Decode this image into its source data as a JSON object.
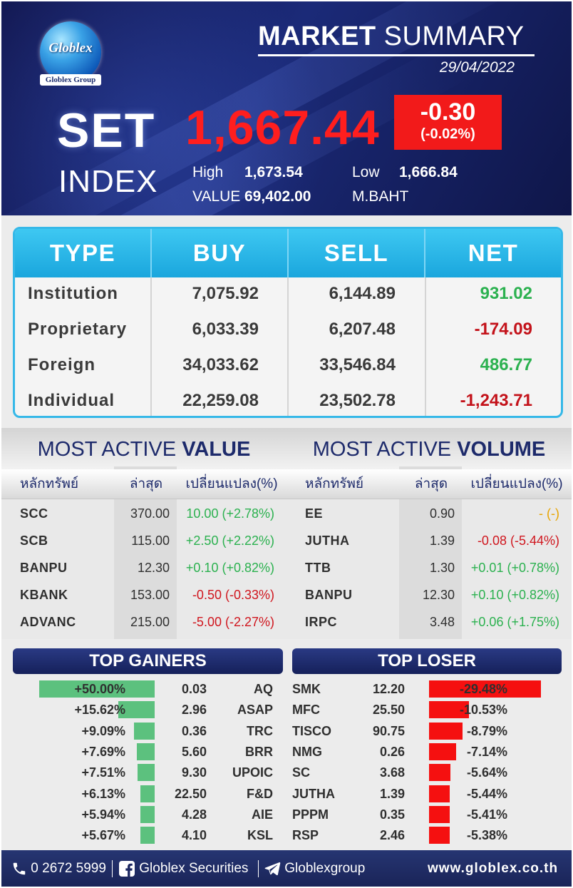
{
  "header": {
    "logo_text": "Globlex",
    "logo_group": "Globlex Group",
    "title_bold": "MARKET",
    "title_rest": "SUMMARY",
    "date": "29/04/2022",
    "index_name_1": "SET",
    "index_name_2": "INDEX",
    "index_value": "1,667.44",
    "change": "-0.30",
    "change_pct": "(-0.02%)",
    "high_label": "High",
    "high_value": "1,673.54",
    "low_label": "Low",
    "low_value": "1,666.84",
    "value_label": "VALUE",
    "value_value": "69,402.00",
    "value_unit": "M.BAHT",
    "colors": {
      "index_value": "#ff1e1e",
      "change_box": "#f21a1a"
    }
  },
  "investor_types": {
    "headers": [
      "TYPE",
      "BUY",
      "SELL",
      "NET"
    ],
    "rows": [
      {
        "type": "Institution",
        "buy": "7,075.92",
        "sell": "6,144.89",
        "net": "931.02",
        "net_sign": "pos"
      },
      {
        "type": "Proprietary",
        "buy": "6,033.39",
        "sell": "6,207.48",
        "net": "-174.09",
        "net_sign": "neg"
      },
      {
        "type": "Foreign",
        "buy": "34,033.62",
        "sell": "33,546.84",
        "net": "486.77",
        "net_sign": "pos"
      },
      {
        "type": "Individual",
        "buy": "22,259.08",
        "sell": "23,502.78",
        "net": "-1,243.71",
        "net_sign": "neg"
      }
    ]
  },
  "most_active_value": {
    "title_light": "MOST ACTIVE",
    "title_bold": "VALUE",
    "columns": [
      "หลักทรัพย์",
      "ล่าสุด",
      "เปลี่ยนแปลง(%)"
    ],
    "rows": [
      {
        "symbol": "SCC",
        "last": "370.00",
        "change": "10.00 (+2.78%)",
        "sign": "pos"
      },
      {
        "symbol": "SCB",
        "last": "115.00",
        "change": "+2.50 (+2.22%)",
        "sign": "pos"
      },
      {
        "symbol": "BANPU",
        "last": "12.30",
        "change": "+0.10 (+0.82%)",
        "sign": "pos"
      },
      {
        "symbol": "KBANK",
        "last": "153.00",
        "change": "-0.50 (-0.33%)",
        "sign": "neg"
      },
      {
        "symbol": "ADVANC",
        "last": "215.00",
        "change": "-5.00 (-2.27%)",
        "sign": "neg"
      }
    ]
  },
  "most_active_volume": {
    "title_light": "MOST ACTIVE",
    "title_bold": "VOLUME",
    "columns": [
      "หลักทรัพย์",
      "ล่าสุด",
      "เปลี่ยนแปลง(%)"
    ],
    "rows": [
      {
        "symbol": "EE",
        "last": "0.90",
        "change": "- (-)",
        "sign": "flat"
      },
      {
        "symbol": "JUTHA",
        "last": "1.39",
        "change": "-0.08 (-5.44%)",
        "sign": "neg"
      },
      {
        "symbol": "TTB",
        "last": "1.30",
        "change": "+0.01 (+0.78%)",
        "sign": "pos"
      },
      {
        "symbol": "BANPU",
        "last": "12.30",
        "change": "+0.10 (+0.82%)",
        "sign": "pos"
      },
      {
        "symbol": "IRPC",
        "last": "3.48",
        "change": "+0.06 (+1.75%)",
        "sign": "pos"
      }
    ]
  },
  "top_gainers": {
    "title": "TOP GAINERS",
    "rows": [
      {
        "pct": "+50.00%",
        "pct_value": 50.0,
        "price": "0.03",
        "symbol": "AQ"
      },
      {
        "pct": "+15.62%",
        "pct_value": 15.62,
        "price": "2.96",
        "symbol": "ASAP"
      },
      {
        "pct": "+9.09%",
        "pct_value": 9.09,
        "price": "0.36",
        "symbol": "TRC"
      },
      {
        "pct": "+7.69%",
        "pct_value": 7.69,
        "price": "5.60",
        "symbol": "BRR"
      },
      {
        "pct": "+7.51%",
        "pct_value": 7.51,
        "price": "9.30",
        "symbol": "UPOIC"
      },
      {
        "pct": "+6.13%",
        "pct_value": 6.13,
        "price": "22.50",
        "symbol": "F&D"
      },
      {
        "pct": "+5.94%",
        "pct_value": 5.94,
        "price": "4.28",
        "symbol": "AIE"
      },
      {
        "pct": "+5.67%",
        "pct_value": 5.67,
        "price": "4.10",
        "symbol": "KSL"
      }
    ]
  },
  "top_loser": {
    "title": "TOP LOSER",
    "rows": [
      {
        "symbol": "SMK",
        "price": "12.20",
        "pct": "-29.48%",
        "pct_value": 29.48
      },
      {
        "symbol": "MFC",
        "price": "25.50",
        "pct": "-10.53%",
        "pct_value": 10.53
      },
      {
        "symbol": "TISCO",
        "price": "90.75",
        "pct": "-8.79%",
        "pct_value": 8.79
      },
      {
        "symbol": "NMG",
        "price": "0.26",
        "pct": "-7.14%",
        "pct_value": 7.14
      },
      {
        "symbol": "SC",
        "price": "3.68",
        "pct": "-5.64%",
        "pct_value": 5.64
      },
      {
        "symbol": "JUTHA",
        "price": "1.39",
        "pct": "-5.44%",
        "pct_value": 5.44
      },
      {
        "symbol": "PPPM",
        "price": "0.35",
        "pct": "-5.41%",
        "pct_value": 5.41
      },
      {
        "symbol": "RSP",
        "price": "2.46",
        "pct": "-5.38%",
        "pct_value": 5.38
      }
    ]
  },
  "footer": {
    "phone": "0 2672 5999",
    "facebook": "Globlex Securities",
    "telegram": "Globlexgroup",
    "website": "www.globlex.co.th"
  }
}
